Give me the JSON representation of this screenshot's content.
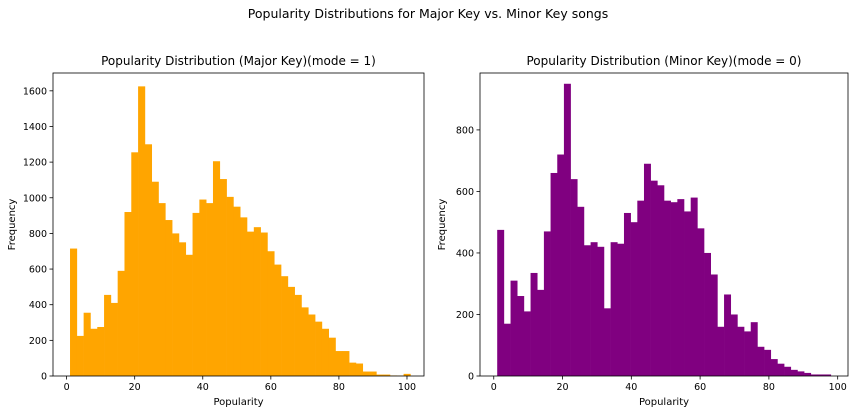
{
  "figure_title": "Popularity Distributions for Major Key vs. Minor Key songs",
  "chart_data": [
    {
      "type": "bar",
      "title": "Popularity Distribution (Major Key)(mode = 1)",
      "xlabel": "Popularity",
      "ylabel": "Frequency",
      "color": "#ffa500",
      "xlim": [
        -4,
        105
      ],
      "ylim": [
        0,
        1700
      ],
      "xticks": [
        0,
        20,
        40,
        60,
        80,
        100
      ],
      "yticks": [
        0,
        200,
        400,
        600,
        800,
        1000,
        1200,
        1400,
        1600
      ],
      "bin_start": 1,
      "bin_width": 2,
      "values": [
        715,
        225,
        355,
        265,
        275,
        455,
        410,
        590,
        920,
        1255,
        1625,
        1300,
        1090,
        970,
        875,
        800,
        750,
        680,
        915,
        990,
        970,
        1205,
        1105,
        1005,
        950,
        890,
        810,
        835,
        805,
        700,
        625,
        560,
        500,
        455,
        385,
        345,
        305,
        265,
        215,
        140,
        140,
        75,
        70,
        25,
        25,
        8,
        8,
        3,
        2,
        12
      ]
    },
    {
      "type": "bar",
      "title": "Popularity Distribution (Minor Key)(mode = 0)",
      "xlabel": "Popularity",
      "ylabel": "Frequency",
      "color": "#800080",
      "xlim": [
        -4,
        103
      ],
      "ylim": [
        0,
        985
      ],
      "xticks": [
        0,
        20,
        40,
        60,
        80,
        100
      ],
      "yticks": [
        0,
        200,
        400,
        600,
        800
      ],
      "bin_start": 1,
      "bin_width": 1.94,
      "values": [
        475,
        170,
        310,
        260,
        210,
        335,
        280,
        470,
        660,
        720,
        950,
        640,
        550,
        425,
        435,
        420,
        220,
        435,
        430,
        530,
        500,
        570,
        690,
        635,
        620,
        570,
        565,
        575,
        535,
        580,
        480,
        400,
        330,
        160,
        265,
        200,
        160,
        145,
        175,
        95,
        85,
        55,
        40,
        30,
        20,
        15,
        10,
        5,
        5,
        5
      ]
    }
  ]
}
